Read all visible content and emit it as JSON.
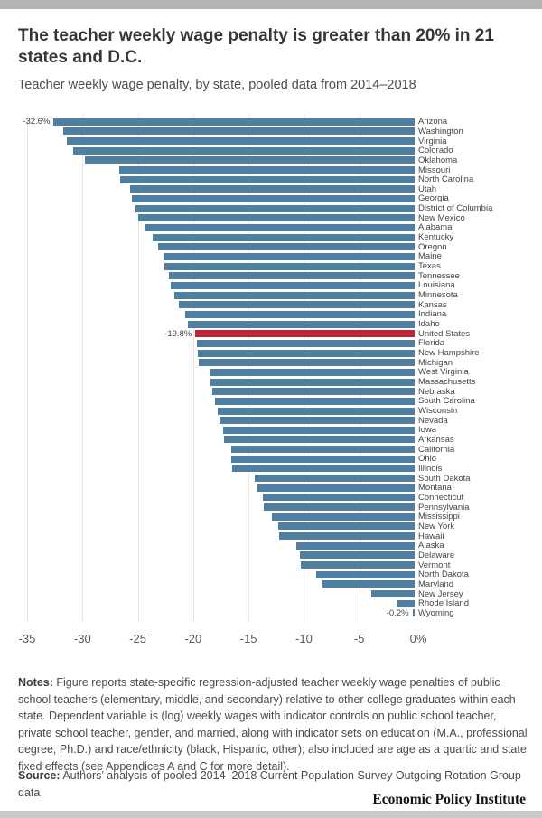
{
  "header": {
    "title": "The teacher weekly wage penalty is greater than 20% in 21 states and D.C.",
    "subtitle": "Teacher weekly wage penalty, by state, pooled data from 2014–2018"
  },
  "chart_data": {
    "type": "bar",
    "orientation": "horizontal",
    "title": "The teacher weekly wage penalty is greater than 20% in 21 states and D.C.",
    "subtitle": "Teacher weekly wage penalty, by state, pooled data from 2014–2018",
    "xlabel": "",
    "ylabel": "",
    "xlim": [
      -35,
      0
    ],
    "grid": "vertical-dotted",
    "x_ticks": [
      {
        "value": -35,
        "label": "-35"
      },
      {
        "value": -30,
        "label": "-30"
      },
      {
        "value": -25,
        "label": "-25"
      },
      {
        "value": -20,
        "label": "-20"
      },
      {
        "value": -15,
        "label": "-15"
      },
      {
        "value": -10,
        "label": "-10"
      },
      {
        "value": -5,
        "label": "-5"
      },
      {
        "value": 0,
        "label": "0%"
      }
    ],
    "bar_color": "#4e7fa0",
    "highlight_color": "#c12134",
    "highlight_category": "United States",
    "categories": [
      "Arizona",
      "Washington",
      "Virginia",
      "Colorado",
      "Oklahoma",
      "Missouri",
      "North Carolina",
      "Utah",
      "Georgia",
      "District of Columbia",
      "New Mexico",
      "Alabama",
      "Kentucky",
      "Oregon",
      "Maine",
      "Texas",
      "Tennessee",
      "Louisiana",
      "Minnesota",
      "Kansas",
      "Indiana",
      "Idaho",
      "United States",
      "Florida",
      "New Hampshire",
      "Michigan",
      "West Virginia",
      "Massachusetts",
      "Nebraska",
      "South Carolina",
      "Wisconsin",
      "Nevada",
      "Iowa",
      "Arkansas",
      "California",
      "Ohio",
      "Illinois",
      "South Dakota",
      "Montana",
      "Connecticut",
      "Pennsylvania",
      "Mississippi",
      "New York",
      "Hawaii",
      "Alaska",
      "Delaware",
      "Vermont",
      "North Dakota",
      "Maryland",
      "New Jersey",
      "Rhode Island",
      "Wyoming"
    ],
    "values": [
      -32.6,
      -31.7,
      -31.4,
      -30.8,
      -29.8,
      -26.7,
      -26.6,
      -25.7,
      -25.5,
      -25.2,
      -25.0,
      -24.3,
      -23.7,
      -23.2,
      -22.7,
      -22.6,
      -22.2,
      -22.0,
      -21.7,
      -21.3,
      -20.7,
      -20.5,
      -19.8,
      -19.7,
      -19.6,
      -19.5,
      -18.4,
      -18.4,
      -18.3,
      -18.0,
      -17.8,
      -17.6,
      -17.3,
      -17.2,
      -16.6,
      -16.6,
      -16.5,
      -14.4,
      -14.2,
      -13.7,
      -13.6,
      -12.9,
      -12.3,
      -12.2,
      -10.7,
      -10.4,
      -10.3,
      -8.9,
      -8.3,
      -3.9,
      -1.6,
      -0.2
    ],
    "point_labels": [
      {
        "category": "Arizona",
        "label": "-32.6%"
      },
      {
        "category": "United States",
        "label": "-19.8%"
      },
      {
        "category": "Wyoming",
        "label": "-0.2%"
      }
    ]
  },
  "notes": {
    "prefix": "Notes:",
    "body": " Figure reports state-specific regression-adjusted teacher weekly wage penalties of public school teachers (elementary, middle, and secondary) relative to other college graduates within each state. Dependent variable is (log) weekly wages with indicator controls on public school teacher, private school teacher, gender, and married, along with indicator sets on education (M.A., professional degree, Ph.D.) and race/ethnicity (black, Hispanic, other); also included are age as a quartic and state fixed effects (see Appendices A and C for more detail)."
  },
  "source": {
    "prefix": "Source:",
    "body": " Authors’ analysis of pooled 2014–2018 Current Population Survey Outgoing Rotation Group data"
  },
  "footer": {
    "brand": "Economic Policy Institute"
  }
}
